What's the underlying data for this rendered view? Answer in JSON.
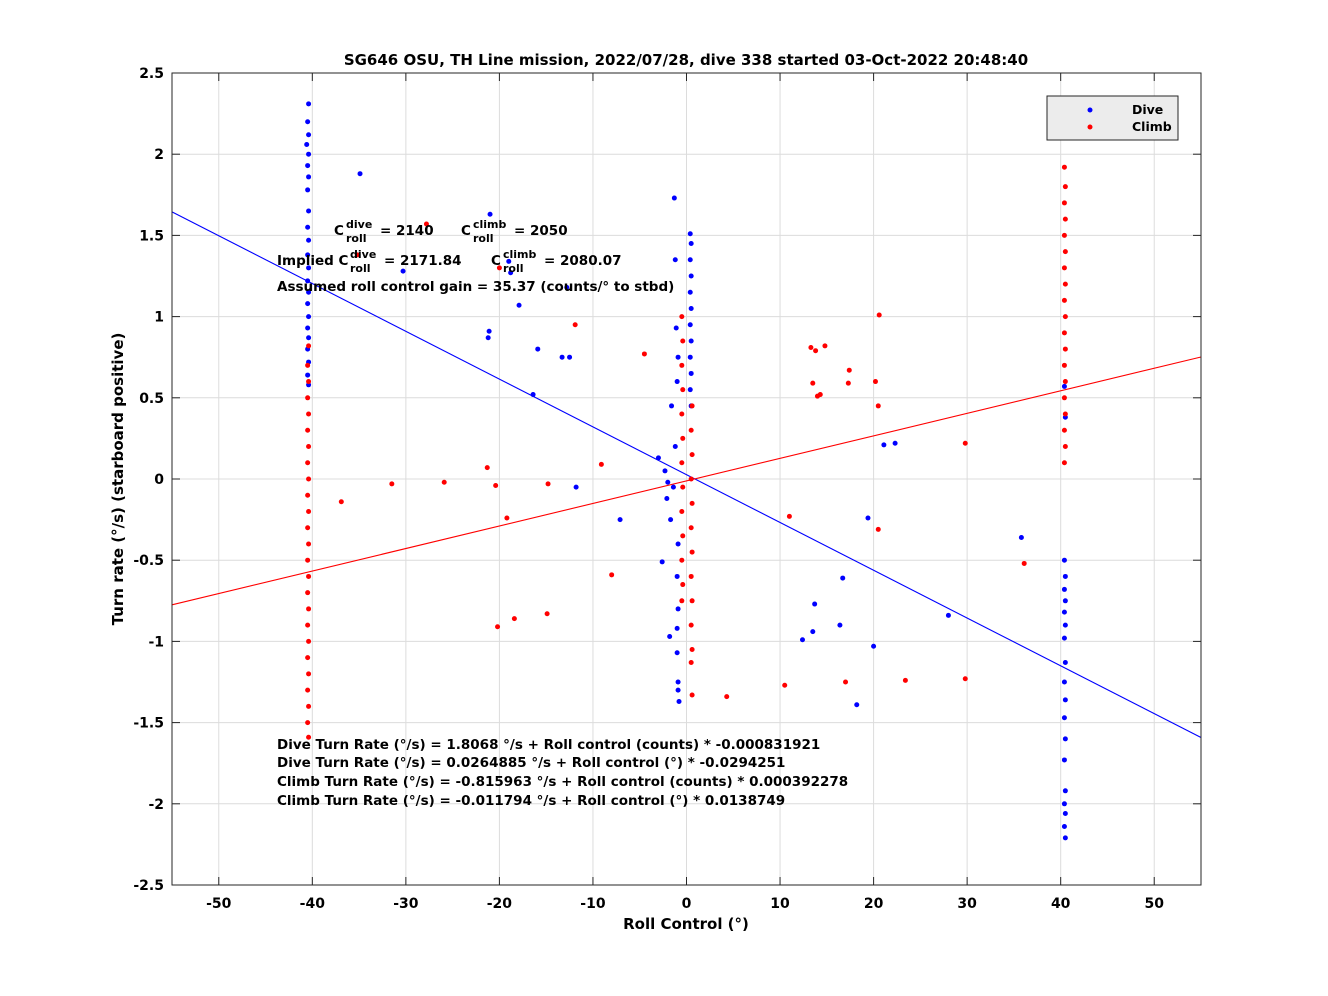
{
  "chart_data": {
    "type": "scatter",
    "title": "SG646 OSU, TH Line mission, 2022/07/28, dive 338 started 03-Oct-2022 20:48:40",
    "xlabel": "Roll Control (°)",
    "ylabel": "Turn rate (°/s) (starboard positive)",
    "xlim": [
      -55,
      55
    ],
    "ylim": [
      -2.5,
      2.5
    ],
    "xticks": [
      -50,
      -40,
      -30,
      -20,
      -10,
      0,
      10,
      20,
      30,
      40,
      50
    ],
    "yticks": [
      -2.5,
      -2,
      -1.5,
      -1,
      -0.5,
      0,
      0.5,
      1,
      1.5,
      2,
      2.5
    ],
    "grid": true,
    "legend_position": "top-right",
    "colors": {
      "dive": "#0000ff",
      "climb": "#ff0000"
    },
    "series": [
      {
        "name": "Dive",
        "color": "#0000ff",
        "fit_line": {
          "slope": -0.0294251,
          "intercept": 0.0264885
        },
        "points": [
          [
            -40.4,
            2.31
          ],
          [
            -40.5,
            2.2
          ],
          [
            -40.4,
            2.12
          ],
          [
            -40.6,
            2.06
          ],
          [
            -40.4,
            2.0
          ],
          [
            -40.5,
            1.93
          ],
          [
            -40.4,
            1.86
          ],
          [
            -40.5,
            1.78
          ],
          [
            -40.4,
            1.65
          ],
          [
            -40.5,
            1.55
          ],
          [
            -40.4,
            1.47
          ],
          [
            -40.5,
            1.38
          ],
          [
            -40.4,
            1.3
          ],
          [
            -40.5,
            1.22
          ],
          [
            -40.4,
            1.15
          ],
          [
            -40.5,
            1.08
          ],
          [
            -40.4,
            1.0
          ],
          [
            -40.5,
            0.93
          ],
          [
            -40.4,
            0.87
          ],
          [
            -40.5,
            0.8
          ],
          [
            -40.4,
            0.72
          ],
          [
            -40.5,
            0.64
          ],
          [
            -40.4,
            0.58
          ],
          [
            -34.9,
            1.88
          ],
          [
            -21.0,
            1.63
          ],
          [
            -19.0,
            1.34
          ],
          [
            -18.8,
            1.27
          ],
          [
            -30.3,
            1.28
          ],
          [
            -17.9,
            1.07
          ],
          [
            -12.8,
            1.18
          ],
          [
            -21.1,
            0.91
          ],
          [
            -21.2,
            0.87
          ],
          [
            -15.9,
            0.8
          ],
          [
            -13.3,
            0.75
          ],
          [
            -12.5,
            0.75
          ],
          [
            -16.4,
            0.52
          ],
          [
            -11.8,
            -0.05
          ],
          [
            -7.1,
            -0.25
          ],
          [
            -2.6,
            -0.51
          ],
          [
            -3.0,
            0.13
          ],
          [
            -1.3,
            1.73
          ],
          [
            -1.2,
            1.35
          ],
          [
            -1.1,
            0.93
          ],
          [
            -1.6,
            0.45
          ],
          [
            -1.2,
            0.2
          ],
          [
            -1.4,
            -0.05
          ],
          [
            -2.1,
            -0.12
          ],
          [
            -1.7,
            -0.25
          ],
          [
            -1.8,
            -0.97
          ],
          [
            -1.0,
            -1.07
          ],
          [
            -0.9,
            -1.3
          ],
          [
            -0.8,
            -1.37
          ],
          [
            -2.3,
            0.05
          ],
          [
            -2.0,
            -0.02
          ],
          [
            -0.9,
            -0.4
          ],
          [
            -1.0,
            -0.6
          ],
          [
            -0.9,
            -0.8
          ],
          [
            -1.0,
            0.6
          ],
          [
            -0.9,
            0.75
          ],
          [
            -1.0,
            -0.92
          ],
          [
            -0.9,
            -1.25
          ],
          [
            0.4,
            1.51
          ],
          [
            0.5,
            1.45
          ],
          [
            0.4,
            1.35
          ],
          [
            0.5,
            1.25
          ],
          [
            0.4,
            1.15
          ],
          [
            0.5,
            1.05
          ],
          [
            0.4,
            0.95
          ],
          [
            0.5,
            0.85
          ],
          [
            0.4,
            0.75
          ],
          [
            0.5,
            0.65
          ],
          [
            0.4,
            0.55
          ],
          [
            0.5,
            0.45
          ],
          [
            13.7,
            -0.77
          ],
          [
            12.4,
            -0.99
          ],
          [
            13.5,
            -0.94
          ],
          [
            16.7,
            -0.61
          ],
          [
            16.4,
            -0.9
          ],
          [
            18.2,
            -1.39
          ],
          [
            19.4,
            -0.24
          ],
          [
            20.0,
            -1.03
          ],
          [
            21.1,
            0.21
          ],
          [
            22.3,
            0.22
          ],
          [
            28.0,
            -0.84
          ],
          [
            35.8,
            -0.36
          ],
          [
            40.4,
            0.57
          ],
          [
            40.5,
            0.38
          ],
          [
            40.4,
            -0.5
          ],
          [
            40.5,
            -0.6
          ],
          [
            40.4,
            -0.68
          ],
          [
            40.5,
            -0.75
          ],
          [
            40.4,
            -0.82
          ],
          [
            40.5,
            -0.9
          ],
          [
            40.4,
            -0.98
          ],
          [
            40.5,
            -1.13
          ],
          [
            40.4,
            -1.25
          ],
          [
            40.5,
            -1.36
          ],
          [
            40.4,
            -1.47
          ],
          [
            40.5,
            -1.6
          ],
          [
            40.4,
            -1.73
          ],
          [
            40.5,
            -1.92
          ],
          [
            40.4,
            -2.0
          ],
          [
            40.5,
            -2.06
          ],
          [
            40.4,
            -2.14
          ],
          [
            40.5,
            -2.21
          ]
        ]
      },
      {
        "name": "Climb",
        "color": "#ff0000",
        "fit_line": {
          "slope": 0.0138749,
          "intercept": -0.011794
        },
        "points": [
          [
            -40.4,
            0.82
          ],
          [
            -40.5,
            0.7
          ],
          [
            -40.4,
            0.6
          ],
          [
            -40.5,
            0.5
          ],
          [
            -40.4,
            0.4
          ],
          [
            -40.5,
            0.3
          ],
          [
            -40.4,
            0.2
          ],
          [
            -40.5,
            0.1
          ],
          [
            -40.4,
            0.0
          ],
          [
            -40.5,
            -0.1
          ],
          [
            -40.4,
            -0.2
          ],
          [
            -40.5,
            -0.3
          ],
          [
            -40.4,
            -0.4
          ],
          [
            -40.5,
            -0.5
          ],
          [
            -40.4,
            -0.6
          ],
          [
            -40.5,
            -0.7
          ],
          [
            -40.4,
            -0.8
          ],
          [
            -40.5,
            -0.9
          ],
          [
            -40.4,
            -1.0
          ],
          [
            -40.5,
            -1.1
          ],
          [
            -40.4,
            -1.2
          ],
          [
            -40.5,
            -1.3
          ],
          [
            -40.4,
            -1.4
          ],
          [
            -40.5,
            -1.5
          ],
          [
            -40.4,
            -1.59
          ],
          [
            -36.9,
            -0.14
          ],
          [
            -31.5,
            -0.03
          ],
          [
            -25.9,
            -0.02
          ],
          [
            -21.3,
            0.07
          ],
          [
            -20.4,
            -0.04
          ],
          [
            -19.2,
            -0.24
          ],
          [
            -14.8,
            -0.03
          ],
          [
            -9.1,
            0.09
          ],
          [
            -8.0,
            -0.59
          ],
          [
            -20.2,
            -0.91
          ],
          [
            -18.4,
            -0.86
          ],
          [
            -14.9,
            -0.83
          ],
          [
            -20.0,
            1.3
          ],
          [
            -11.9,
            0.95
          ],
          [
            -27.8,
            1.57
          ],
          [
            -4.5,
            0.77
          ],
          [
            -35.2,
            1.38
          ],
          [
            -0.5,
            1.0
          ],
          [
            -0.4,
            0.85
          ],
          [
            -0.5,
            0.7
          ],
          [
            -0.4,
            0.55
          ],
          [
            -0.5,
            0.4
          ],
          [
            -0.4,
            0.25
          ],
          [
            -0.5,
            0.1
          ],
          [
            -0.4,
            -0.05
          ],
          [
            -0.5,
            -0.2
          ],
          [
            -0.4,
            -0.35
          ],
          [
            -0.5,
            -0.5
          ],
          [
            -0.4,
            -0.65
          ],
          [
            -0.5,
            -0.75
          ],
          [
            0.6,
            0.45
          ],
          [
            0.5,
            0.3
          ],
          [
            0.6,
            0.15
          ],
          [
            0.5,
            0.0
          ],
          [
            0.6,
            -0.15
          ],
          [
            0.5,
            -0.3
          ],
          [
            0.6,
            -0.45
          ],
          [
            0.5,
            -0.6
          ],
          [
            0.6,
            -0.75
          ],
          [
            0.5,
            -0.9
          ],
          [
            0.6,
            -1.05
          ],
          [
            0.5,
            -1.13
          ],
          [
            0.6,
            -1.33
          ],
          [
            4.3,
            -1.34
          ],
          [
            10.5,
            -1.27
          ],
          [
            11.0,
            -0.23
          ],
          [
            13.3,
            0.81
          ],
          [
            13.5,
            0.59
          ],
          [
            13.8,
            0.79
          ],
          [
            14.0,
            0.51
          ],
          [
            14.3,
            0.52
          ],
          [
            14.8,
            0.82
          ],
          [
            17.0,
            -1.25
          ],
          [
            17.3,
            0.59
          ],
          [
            17.4,
            0.67
          ],
          [
            20.2,
            0.6
          ],
          [
            20.5,
            0.45
          ],
          [
            20.5,
            -0.31
          ],
          [
            20.6,
            1.01
          ],
          [
            23.4,
            -1.24
          ],
          [
            29.8,
            0.22
          ],
          [
            29.8,
            -1.23
          ],
          [
            36.1,
            -0.52
          ],
          [
            40.4,
            1.92
          ],
          [
            40.5,
            1.8
          ],
          [
            40.4,
            1.7
          ],
          [
            40.5,
            1.6
          ],
          [
            40.4,
            1.5
          ],
          [
            40.5,
            1.4
          ],
          [
            40.4,
            1.3
          ],
          [
            40.5,
            1.2
          ],
          [
            40.4,
            1.1
          ],
          [
            40.5,
            1.0
          ],
          [
            40.4,
            0.9
          ],
          [
            40.5,
            0.8
          ],
          [
            40.4,
            0.7
          ],
          [
            40.5,
            0.6
          ],
          [
            40.4,
            0.5
          ],
          [
            40.5,
            0.4
          ],
          [
            40.4,
            0.3
          ],
          [
            40.5,
            0.2
          ],
          [
            40.4,
            0.1
          ]
        ]
      }
    ],
    "annotations": {
      "c_dive_label": "C",
      "c_dive_sup": "dive",
      "c_dive_sub": "roll",
      "c_dive_value": "= 2140",
      "c_climb_label": "C",
      "c_climb_sup": "climb",
      "c_climb_sub": "roll",
      "c_climb_value": "= 2050",
      "implied_prefix": "Implied C",
      "implied_dive_sup": "dive",
      "implied_dive_sub": "roll",
      "implied_dive_value": "= 2171.84",
      "implied_climb_label": "C",
      "implied_climb_sup": "climb",
      "implied_climb_sub": "roll",
      "implied_climb_value": "= 2080.07",
      "gain": "Assumed roll control gain = 35.37 (counts/° to stbd)",
      "fit_lines": [
        "Dive Turn Rate (°/s) = 1.8068 °/s + Roll control (counts) * -0.000831921",
        "Dive Turn Rate (°/s) = 0.0264885 °/s + Roll control (°) * -0.0294251",
        "Climb Turn Rate (°/s) = -0.815963 °/s + Roll control (counts) * 0.000392278",
        "Climb Turn Rate (°/s) = -0.011794 °/s + Roll control (°) * 0.0138749"
      ]
    }
  }
}
